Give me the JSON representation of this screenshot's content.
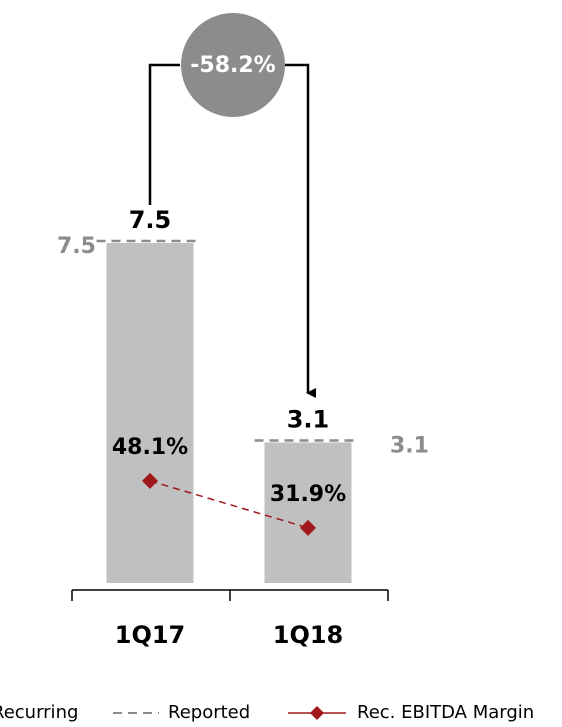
{
  "chart_data": {
    "type": "bar",
    "categories": [
      "1Q17",
      "1Q18"
    ],
    "series": [
      {
        "name": "Recurring",
        "color": "#c0c0c0",
        "values": [
          7.5,
          3.1
        ]
      },
      {
        "name": "Reported",
        "color": "#8c8c8c",
        "style": "dashed",
        "values": [
          7.5,
          3.1
        ]
      },
      {
        "name": "Rec. EBITDA Margin",
        "color": "#a0181c",
        "axis": "y2",
        "values": [
          48.1,
          31.9
        ],
        "value_labels": [
          "48.1%",
          "31.9%"
        ]
      }
    ],
    "ylim": [
      0,
      7.5
    ],
    "y2lim": [
      12.9,
      130.1
    ],
    "annotation": "-58.2%",
    "grid": false
  }
}
